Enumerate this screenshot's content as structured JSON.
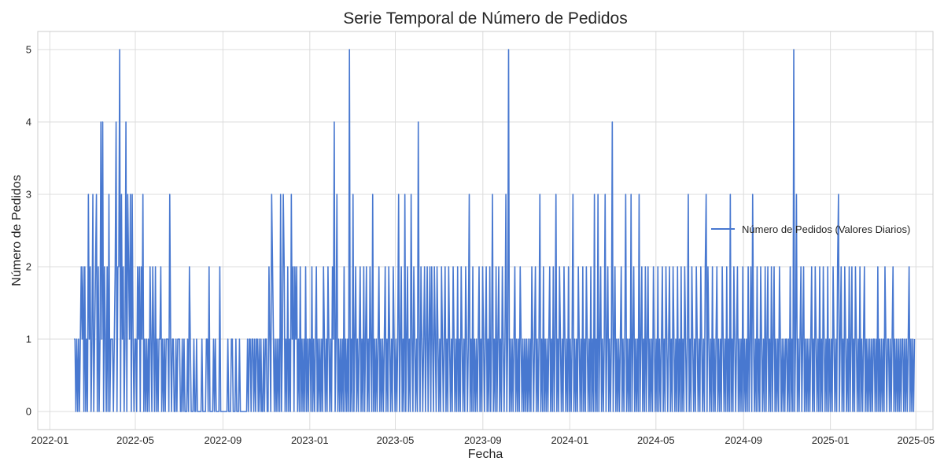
{
  "chart_data": {
    "type": "line",
    "title": "Serie Temporal de Número de Pedidos",
    "xlabel": "Fecha",
    "ylabel": "Número de Pedidos",
    "x_range": [
      "2021-12-15",
      "2025-05-25"
    ],
    "ylim": [
      -0.25,
      5.25
    ],
    "x_ticks": [
      "2022-01",
      "2022-05",
      "2022-09",
      "2023-01",
      "2023-05",
      "2023-09",
      "2024-01",
      "2024-05",
      "2024-09",
      "2025-01",
      "2025-05"
    ],
    "y_ticks": [
      0,
      1,
      2,
      3,
      4,
      5
    ],
    "grid": true,
    "legend": "center-right",
    "series": [
      {
        "name": "Número de Pedidos (Valores Diarios)",
        "color": "#4878d0",
        "x_start": "2022-02-04",
        "x_end": "2025-04-29",
        "frequency": "daily",
        "values": [
          1,
          1,
          0,
          1,
          0,
          1,
          0,
          1,
          2,
          1,
          2,
          0,
          2,
          0,
          1,
          0,
          3,
          1,
          2,
          0,
          1,
          3,
          0,
          1,
          2,
          3,
          0,
          2,
          0,
          1,
          4,
          1,
          4,
          0,
          2,
          1,
          0,
          2,
          0,
          3,
          0,
          1,
          1,
          1,
          0,
          1,
          2,
          4,
          0,
          2,
          2,
          5,
          0,
          3,
          1,
          2,
          0,
          1,
          4,
          0,
          3,
          2,
          1,
          3,
          0,
          3,
          1,
          0,
          1,
          1,
          0,
          2,
          1,
          2,
          0,
          2,
          1,
          3,
          0,
          1,
          0,
          1,
          0,
          1,
          0,
          2,
          1,
          0,
          2,
          1,
          0,
          2,
          0,
          1,
          0,
          1,
          1,
          2,
          0,
          1,
          0,
          1,
          0,
          1,
          1,
          1,
          0,
          3,
          1,
          0,
          1,
          1,
          0,
          0,
          1,
          0,
          1,
          1,
          1,
          0,
          0,
          1,
          0,
          1,
          0,
          0,
          0,
          1,
          0,
          2,
          1,
          0,
          0,
          0,
          1,
          0,
          0,
          1,
          0,
          0,
          0,
          0,
          0,
          1,
          0,
          0,
          0,
          0,
          1,
          1,
          0,
          2,
          0,
          0,
          0,
          0,
          1,
          0,
          1,
          0,
          0,
          0,
          0,
          2,
          0,
          0,
          0,
          0,
          0,
          0,
          0,
          0,
          1,
          0,
          0,
          0,
          1,
          1,
          0,
          0,
          0,
          1,
          0,
          0,
          0,
          1,
          0,
          0,
          0,
          0,
          0,
          0,
          0,
          0,
          1,
          0,
          1,
          1,
          0,
          1,
          1,
          0,
          1,
          0,
          1,
          1,
          0,
          1,
          0,
          1,
          0,
          0,
          1,
          0,
          1,
          1,
          0,
          0,
          2,
          1,
          0,
          3,
          2,
          1,
          0,
          1,
          0,
          1,
          0,
          1,
          0,
          3,
          0,
          1,
          3,
          2,
          0,
          1,
          0,
          2,
          0,
          1,
          0,
          3,
          1,
          2,
          0,
          2,
          1,
          2,
          0,
          1,
          0,
          2,
          0,
          1,
          0,
          1,
          0,
          2,
          0,
          1,
          0,
          1,
          1,
          0,
          2,
          0,
          1,
          0,
          1,
          2,
          0,
          1,
          0,
          1,
          0,
          1,
          0,
          2,
          1,
          0,
          1,
          0,
          2,
          1,
          0,
          1,
          0,
          2,
          1,
          4,
          0,
          1,
          3,
          0,
          1,
          0,
          1,
          0,
          1,
          0,
          2,
          0,
          1,
          0,
          1,
          0,
          5,
          0,
          1,
          0,
          3,
          0,
          1,
          2,
          0,
          1,
          0,
          1,
          2,
          0,
          1,
          0,
          2,
          0,
          1,
          2,
          0,
          1,
          0,
          2,
          1,
          0,
          3,
          0,
          1,
          0,
          1,
          0,
          1,
          2,
          0,
          1,
          0,
          1,
          0,
          1,
          2,
          0,
          1,
          0,
          2,
          1,
          0,
          1,
          0,
          2,
          1,
          0,
          1,
          0,
          1,
          3,
          0,
          1,
          2,
          0,
          1,
          0,
          3,
          0,
          1,
          2,
          0,
          1,
          0,
          3,
          1,
          0,
          2,
          1,
          0,
          1,
          0,
          4,
          1,
          0,
          2,
          1,
          0,
          1,
          2,
          0,
          1,
          2,
          0,
          1,
          2,
          0,
          2,
          1,
          0,
          2,
          1,
          0,
          2,
          1,
          0,
          1,
          0,
          2,
          1,
          0,
          1,
          2,
          0,
          1,
          0,
          2,
          1,
          0,
          1,
          0,
          2,
          1,
          0,
          1,
          0,
          2,
          0,
          1,
          0,
          2,
          1,
          0,
          1,
          0,
          2,
          1,
          0,
          1,
          3,
          0,
          1,
          0,
          2,
          0,
          1,
          0,
          1,
          0,
          1,
          2,
          0,
          1,
          0,
          2,
          1,
          0,
          1,
          2,
          0,
          1,
          0,
          2,
          0,
          1,
          3,
          0,
          1,
          0,
          2,
          0,
          1,
          2,
          0,
          1,
          0,
          2,
          1,
          0,
          1,
          3,
          0,
          1,
          5,
          0,
          1,
          0,
          1,
          0,
          1,
          2,
          0,
          1,
          0,
          1,
          0,
          2,
          1,
          0,
          1,
          0,
          1,
          0,
          1,
          0,
          1,
          0,
          1,
          0,
          2,
          1,
          0,
          1,
          2,
          0,
          1,
          0,
          1,
          3,
          0,
          1,
          0,
          2,
          0,
          1,
          0,
          1,
          0,
          1,
          2,
          0,
          1,
          0,
          2,
          0,
          1,
          3,
          0,
          1,
          0,
          2,
          1,
          0,
          1,
          0,
          2,
          1,
          0,
          1,
          0,
          2,
          0,
          1,
          0,
          1,
          3,
          0,
          1,
          0,
          1,
          0,
          2,
          1,
          0,
          1,
          0,
          2,
          0,
          1,
          0,
          2,
          1,
          0,
          1,
          0,
          2,
          0,
          1,
          0,
          3,
          0,
          1,
          0,
          3,
          0,
          1,
          2,
          0,
          1,
          0,
          1,
          3,
          0,
          1,
          2,
          0,
          1,
          0,
          1,
          4,
          0,
          1,
          2,
          0,
          1,
          0,
          1,
          0,
          1,
          2,
          0,
          1,
          0,
          1,
          3,
          0,
          1,
          0,
          1,
          0,
          3,
          0,
          1,
          2,
          0,
          1,
          0,
          1,
          0,
          3,
          0,
          1,
          2,
          0,
          1,
          0,
          2,
          0,
          1,
          2,
          0,
          1,
          0,
          1,
          0,
          2,
          1,
          0,
          1,
          0,
          2,
          0,
          1,
          0,
          1,
          2,
          0,
          1,
          0,
          2,
          1,
          0,
          1,
          2,
          0,
          1,
          0,
          2,
          1,
          0,
          1,
          0,
          2,
          0,
          1,
          0,
          2,
          0,
          1,
          0,
          2,
          1,
          0,
          1,
          3,
          0,
          1,
          0,
          2,
          1,
          0,
          1,
          0,
          2,
          1,
          0,
          1,
          0,
          2,
          1,
          0,
          1,
          0,
          2,
          3,
          0,
          2,
          1,
          0,
          1,
          0,
          2,
          0,
          1,
          0,
          1,
          2,
          0,
          1,
          0,
          1,
          0,
          2,
          1,
          0,
          1,
          0,
          2,
          0,
          1,
          0,
          3,
          0,
          1,
          0,
          2,
          1,
          0,
          1,
          2,
          0,
          1,
          0,
          1,
          0,
          2,
          0,
          1,
          0,
          1,
          0,
          2,
          0,
          1,
          2,
          0,
          3,
          1,
          0,
          1,
          0,
          2,
          0,
          1,
          0,
          2,
          1,
          0,
          1,
          0,
          2,
          0,
          1,
          2,
          0,
          1,
          0,
          2,
          0,
          1,
          2,
          0,
          1,
          0,
          1,
          0,
          2,
          1,
          0,
          1,
          0,
          1,
          0,
          1,
          1,
          0,
          1,
          0,
          2,
          0,
          1,
          0,
          5,
          0,
          1,
          3,
          0,
          1,
          0,
          1,
          2,
          0,
          1,
          2,
          0,
          1,
          0,
          1,
          0,
          1,
          0,
          1,
          2,
          0,
          1,
          0,
          2,
          1,
          0,
          1,
          0,
          2,
          0,
          1,
          0,
          2,
          1,
          0,
          1,
          0,
          2,
          0,
          1,
          0,
          1,
          0,
          2,
          1,
          0,
          1,
          0,
          2,
          3,
          0,
          1,
          2,
          0,
          1,
          0,
          2,
          1,
          0,
          1,
          0,
          2,
          0,
          1,
          2,
          0,
          1,
          0,
          2,
          1,
          0,
          1,
          0,
          2,
          0,
          1,
          0,
          1,
          2,
          0,
          1,
          0,
          1,
          0,
          1,
          0,
          1,
          0,
          1,
          1,
          0,
          1,
          0,
          2,
          0,
          1,
          0,
          1,
          0,
          1,
          0,
          2,
          1,
          0,
          1,
          1,
          0,
          1,
          0,
          1,
          2,
          0,
          1,
          0,
          1,
          0,
          1,
          0,
          1,
          0,
          1,
          1,
          0,
          1,
          0,
          1,
          0,
          1,
          2,
          0,
          1,
          0,
          1,
          0,
          1
        ]
      }
    ]
  }
}
